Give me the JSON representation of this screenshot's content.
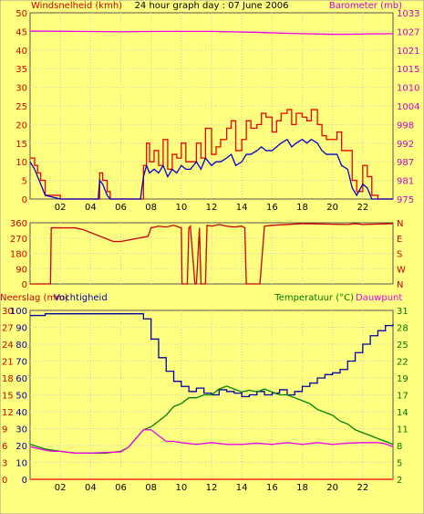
{
  "title": "24 hour graph day : 07 June 2006",
  "colors": {
    "background": "#ffff80",
    "wind_avg": "#0000cc",
    "wind_gust": "#ee0000",
    "barometer": "#ee00ee",
    "direction": "#cc0000",
    "humidity": "#0000aa",
    "temperature": "#008000",
    "dewpoint": "#ee00ee",
    "rain": "#ee0000",
    "axis_left": "#cc0000",
    "axis_right": "#cc00cc",
    "axis_temp": "#007700"
  },
  "chart_data": [
    {
      "type": "line",
      "ylabel": "Windsnelheid (kmh)",
      "y2label": "Barometer (mb)",
      "ylim": [
        0,
        50
      ],
      "yticks": [
        "0",
        "5",
        "10",
        "15",
        "20",
        "25",
        "30",
        "35",
        "40",
        "45",
        "50"
      ],
      "y2lim": [
        975,
        1033
      ],
      "y2ticks": [
        "975",
        "981",
        "987",
        "992",
        "998",
        "1004",
        "1010",
        "1015",
        "1021",
        "1027",
        "1033"
      ],
      "xlim": [
        0,
        24
      ],
      "xticks": [
        "02",
        "04",
        "06",
        "08",
        "10",
        "12",
        "14",
        "16",
        "18",
        "20",
        "22"
      ],
      "series": [
        {
          "key": "barometer",
          "axis": "right",
          "x": [
            0,
            3,
            6,
            9,
            12,
            15,
            17,
            19,
            20,
            21,
            22,
            24
          ],
          "y": [
            1027.3,
            1027.2,
            1027.1,
            1027.2,
            1027.2,
            1026.9,
            1026.6,
            1026.4,
            1026.3,
            1026.3,
            1026.4,
            1026.5
          ]
        },
        {
          "key": "gust",
          "axis": "left",
          "x": [
            0,
            0.3,
            0.5,
            0.7,
            1.0,
            2.0,
            4.5,
            4.6,
            4.8,
            5.1,
            5.3,
            7.3,
            7.5,
            7.7,
            7.9,
            8.2,
            8.5,
            8.8,
            9.1,
            9.4,
            9.7,
            10.0,
            10.3,
            10.6,
            11.0,
            11.3,
            11.6,
            12.0,
            12.3,
            12.6,
            13.0,
            13.3,
            13.6,
            14.0,
            14.3,
            14.6,
            15.0,
            15.3,
            15.6,
            16.0,
            16.3,
            16.6,
            17.0,
            17.3,
            17.6,
            18.0,
            18.3,
            18.6,
            19.0,
            19.3,
            19.6,
            20.0,
            20.3,
            20.6,
            21.0,
            21.3,
            21.6,
            22.0,
            22.3,
            22.6,
            23.0,
            24.0
          ],
          "y": [
            11,
            9,
            7,
            5,
            1,
            0,
            0,
            7,
            5,
            2,
            0,
            0,
            9,
            15,
            10,
            13,
            9,
            16,
            8,
            12,
            11,
            15,
            10,
            10,
            15,
            11,
            19,
            12,
            14,
            16,
            19,
            21,
            13,
            16,
            21,
            19,
            20,
            23,
            22,
            18,
            21,
            23,
            24,
            20,
            23,
            22,
            21,
            24,
            20,
            17,
            16,
            16,
            18,
            13,
            13,
            5,
            2,
            9,
            6,
            1,
            0,
            0
          ]
        },
        {
          "key": "average",
          "axis": "left",
          "x": [
            0,
            0.3,
            0.5,
            0.7,
            1.0,
            2.0,
            4.5,
            4.6,
            4.8,
            5.1,
            5.3,
            7.3,
            7.5,
            7.7,
            7.9,
            8.2,
            8.5,
            8.8,
            9.1,
            9.4,
            9.7,
            10.0,
            10.3,
            10.6,
            11.0,
            11.3,
            11.6,
            12.0,
            12.3,
            12.6,
            13.0,
            13.3,
            13.6,
            14.0,
            14.3,
            14.6,
            15.0,
            15.3,
            15.6,
            16.0,
            16.3,
            16.6,
            17.0,
            17.3,
            17.6,
            18.0,
            18.3,
            18.6,
            19.0,
            19.3,
            19.6,
            20.0,
            20.3,
            20.6,
            21.0,
            21.3,
            21.6,
            22.0,
            22.3,
            22.6,
            23.0,
            24.0
          ],
          "y": [
            10,
            8,
            6,
            4,
            1,
            0,
            0,
            5,
            4,
            1,
            0,
            0,
            6,
            9,
            7,
            8,
            7,
            9,
            6,
            8,
            7,
            9,
            8,
            8,
            10,
            8,
            11,
            9,
            10,
            10,
            11,
            12,
            9,
            10,
            12,
            12,
            13,
            14,
            13,
            13,
            14,
            15,
            16,
            14,
            15,
            16,
            15,
            16,
            15,
            13,
            12,
            12,
            12,
            9,
            8,
            3,
            1,
            4,
            3,
            0,
            0,
            0
          ]
        }
      ]
    },
    {
      "type": "line",
      "ylim": [
        0,
        360
      ],
      "yticks": [
        "0",
        "90",
        "180",
        "270",
        "360"
      ],
      "y2ticks": [
        "N",
        "W",
        "S",
        "E",
        "N"
      ],
      "xlim": [
        0,
        24
      ],
      "series": [
        {
          "key": "direction",
          "x": [
            0,
            1.35,
            1.4,
            3.0,
            3.5,
            5.5,
            6.0,
            7.8,
            8.0,
            8.5,
            9.0,
            9.5,
            10.0,
            10.05,
            10.4,
            10.5,
            10.6,
            10.9,
            11.0,
            11.2,
            11.3,
            11.6,
            11.7,
            12.0,
            12.5,
            13.0,
            13.5,
            14.0,
            14.2,
            14.3,
            15.0,
            15.2,
            15.5,
            16.0,
            18.0,
            21.0,
            21.5,
            22.0,
            24.0
          ],
          "y": [
            0,
            0,
            330,
            330,
            320,
            250,
            250,
            280,
            330,
            340,
            335,
            345,
            330,
            0,
            0,
            330,
            340,
            0,
            0,
            330,
            0,
            0,
            345,
            340,
            350,
            340,
            335,
            340,
            330,
            0,
            0,
            0,
            340,
            345,
            355,
            350,
            355,
            350,
            355
          ]
        }
      ]
    },
    {
      "type": "line",
      "ylabel": "Neerslag (mm)",
      "ylabel2": "Vochtigheid",
      "y2label": "Temperatuur (°C)",
      "y2label2": "Dauwpunt",
      "ylim": [
        0,
        100
      ],
      "yticks": [
        "0",
        "10",
        "20",
        "30",
        "40",
        "50",
        "60",
        "70",
        "80",
        "90",
        "100"
      ],
      "rainticks": [
        "0",
        "3",
        "6",
        "9",
        "12",
        "15",
        "18",
        "21",
        "24",
        "27",
        "30"
      ],
      "y2lim": [
        2,
        31
      ],
      "y2ticks": [
        "2",
        "5",
        "8",
        "11",
        "14",
        "17",
        "19",
        "22",
        "25",
        "28",
        "31"
      ],
      "xlim": [
        0,
        24
      ],
      "xticks": [
        "02",
        "04",
        "06",
        "08",
        "10",
        "12",
        "14",
        "16",
        "18",
        "20",
        "22"
      ],
      "series": [
        {
          "key": "humidity",
          "axis": "left",
          "x": [
            0,
            1,
            2,
            3,
            4,
            5,
            6,
            7,
            7.5,
            8,
            8.5,
            9,
            9.5,
            10,
            10.5,
            11,
            11.5,
            12,
            12.5,
            13,
            13.5,
            14,
            14.5,
            15,
            15.5,
            16,
            16.5,
            17,
            17.5,
            18,
            18.5,
            19,
            19.5,
            20,
            20.5,
            21,
            21.5,
            22,
            22.5,
            23,
            23.5,
            24
          ],
          "y": [
            97,
            98,
            98,
            98,
            98,
            98,
            98,
            98,
            95,
            83,
            72,
            64,
            58,
            55,
            52,
            54,
            51,
            50,
            53,
            52,
            51,
            49,
            50,
            52,
            50,
            51,
            53,
            50,
            52,
            55,
            57,
            60,
            62,
            63,
            65,
            70,
            75,
            80,
            85,
            88,
            91,
            92
          ]
        },
        {
          "key": "temperature",
          "axis": "right",
          "x": [
            0,
            0.5,
            1,
            1.5,
            2,
            3,
            4,
            5,
            6,
            6.5,
            7,
            7.5,
            8,
            8.5,
            9,
            9.5,
            10,
            10.5,
            11,
            11.5,
            12,
            12.5,
            13,
            13.5,
            14,
            14.5,
            15,
            15.5,
            16,
            16.5,
            17,
            17.5,
            18,
            18.5,
            19,
            19.5,
            20,
            20.5,
            21,
            21.5,
            22,
            22.5,
            23,
            23.5,
            24
          ],
          "y": [
            8,
            7.6,
            7.2,
            7,
            6.8,
            6.5,
            6.5,
            6.5,
            6.8,
            7.5,
            9,
            10.5,
            11,
            12,
            13,
            14.5,
            15,
            16,
            16,
            16.5,
            16.5,
            17.5,
            18,
            17.5,
            17,
            17.3,
            17,
            17.5,
            17,
            16.5,
            16.5,
            16,
            15.5,
            15,
            14,
            13.5,
            13,
            12,
            11.5,
            10.5,
            10,
            9.5,
            9,
            8.5,
            8
          ]
        },
        {
          "key": "dewpoint",
          "axis": "right",
          "x": [
            0,
            0.5,
            1,
            1.5,
            2,
            3,
            4,
            5,
            6,
            6.5,
            7,
            7.5,
            8,
            8.5,
            9,
            9.5,
            10,
            11,
            12,
            13,
            14,
            15,
            16,
            17,
            18,
            19,
            20,
            21,
            22,
            23,
            23.5,
            24
          ],
          "y": [
            7.6,
            7.3,
            7,
            6.8,
            6.8,
            6.5,
            6.5,
            6.6,
            6.7,
            7.5,
            9,
            10.5,
            10.5,
            9.5,
            8.5,
            8.5,
            8.3,
            8,
            8.3,
            8,
            8,
            8.2,
            8,
            8.3,
            8,
            8.3,
            8,
            8.2,
            8.3,
            8.3,
            8.1,
            7.6
          ]
        },
        {
          "key": "rain",
          "axis": "rain",
          "x": [
            0,
            24
          ],
          "y": [
            0,
            0
          ]
        }
      ]
    }
  ]
}
